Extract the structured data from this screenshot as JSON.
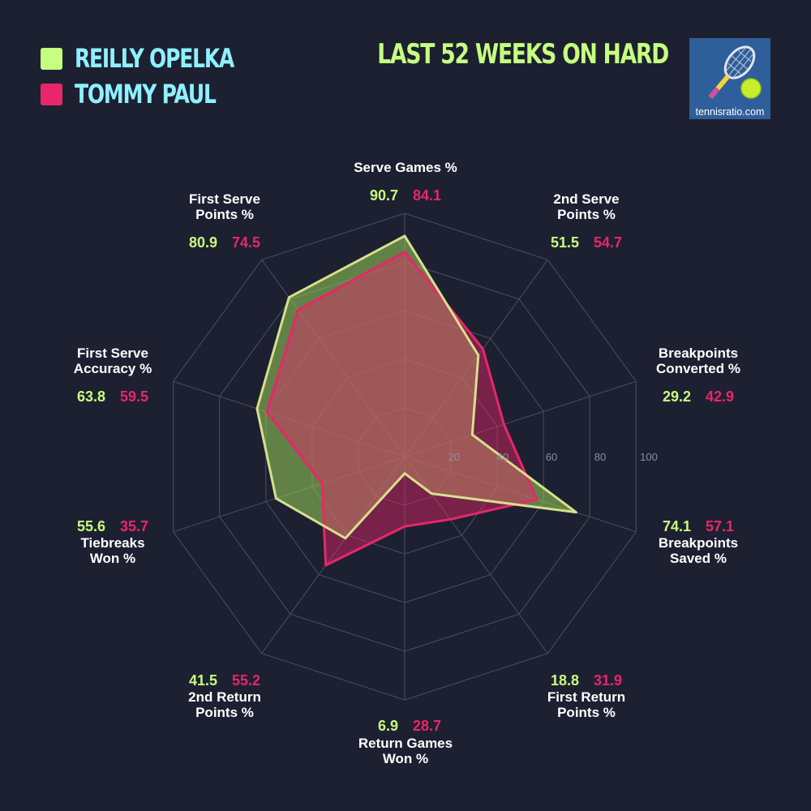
{
  "legend": {
    "players": [
      {
        "name": "REILLY OPELKA",
        "color": "#c6ff7f"
      },
      {
        "name": "TOMMY PAUL",
        "color": "#e8266a"
      }
    ]
  },
  "subtitle": {
    "text": "LAST 52 WEEKS ON HARD",
    "color": "#c6ff7f"
  },
  "logo": {
    "text": "tennisratio.com"
  },
  "chart_data": {
    "type": "radar",
    "axes": [
      [
        "Serve Games %"
      ],
      [
        "2nd Serve",
        "Points %"
      ],
      [
        "Breakpoints",
        "Converted %"
      ],
      [
        "Breakpoints",
        "Saved %"
      ],
      [
        "First Return",
        "Points %"
      ],
      [
        "Return Games",
        "Won %"
      ],
      [
        "2nd Return",
        "Points %"
      ],
      [
        "Tiebreaks",
        "Won %"
      ],
      [
        "First Serve",
        "Accuracy %"
      ],
      [
        "First Serve",
        "Points %"
      ]
    ],
    "series": [
      {
        "name": "REILLY OPELKA",
        "color": "#c6ff7f",
        "values": [
          90.7,
          51.5,
          29.2,
          74.1,
          18.8,
          6.9,
          41.5,
          55.6,
          63.8,
          80.9
        ]
      },
      {
        "name": "TOMMY PAUL",
        "color": "#e8266a",
        "values": [
          84.1,
          54.7,
          42.9,
          57.1,
          31.9,
          28.7,
          55.2,
          35.7,
          59.5,
          74.5
        ]
      }
    ],
    "value_labels": [
      [
        "90.7",
        "84.1"
      ],
      [
        "51.5",
        "54.7"
      ],
      [
        "29.2",
        "42.9"
      ],
      [
        "74.1",
        "57.1"
      ],
      [
        "18.8",
        "31.9"
      ],
      [
        "6.9",
        "28.7"
      ],
      [
        "41.5",
        "55.2"
      ],
      [
        "55.6",
        "35.7"
      ],
      [
        "63.8",
        "59.5"
      ],
      [
        "80.9",
        "74.5"
      ]
    ],
    "ticks": [
      "20",
      "40",
      "60",
      "80",
      "100"
    ],
    "range": [
      0,
      100
    ],
    "grid": true,
    "legend_position": "top-left"
  }
}
